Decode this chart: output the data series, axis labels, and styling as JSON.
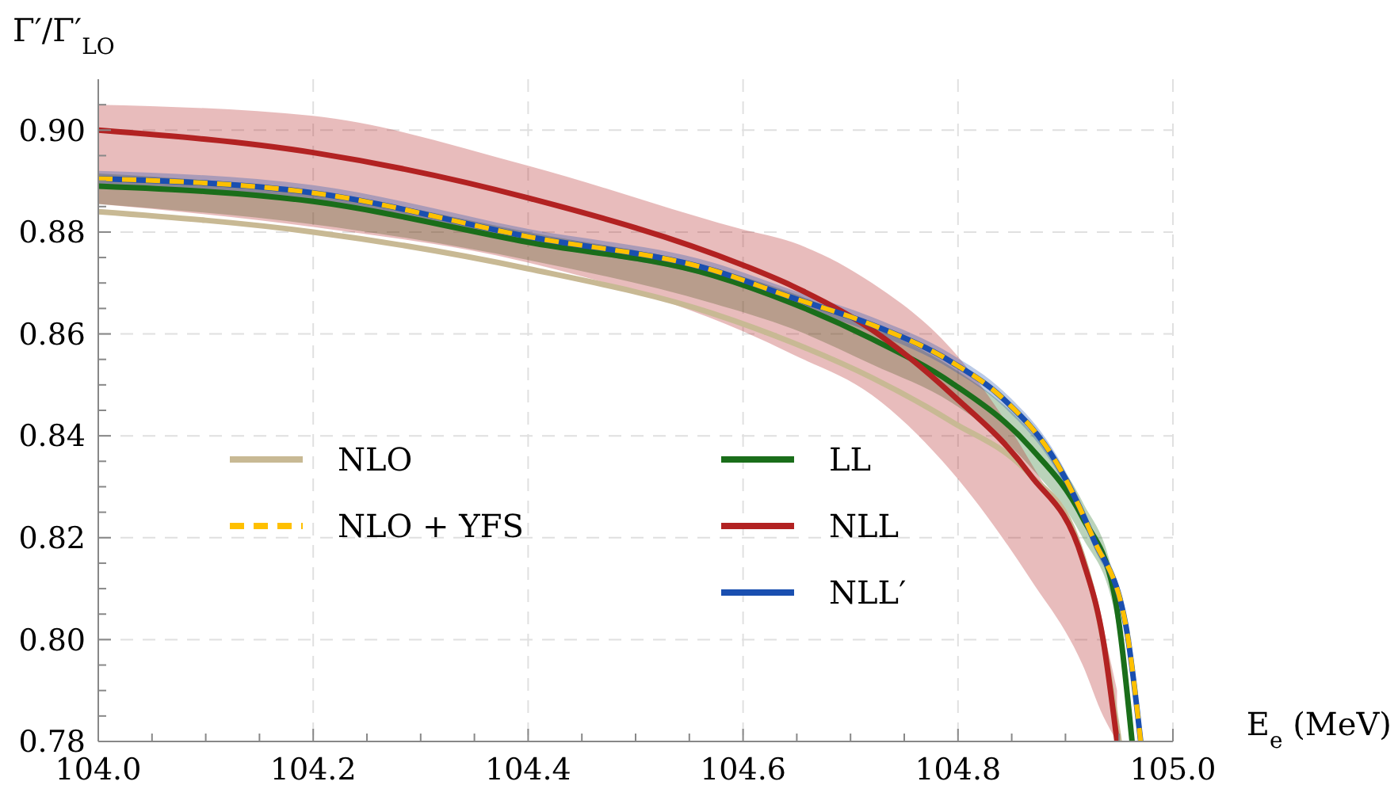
{
  "chart_data": {
    "type": "line",
    "xlabel": "E$_{e}$ (MeV)",
    "ylabel": "Γ′/Γ′$_{LO}$",
    "xlim": [
      104.0,
      105.0
    ],
    "ylim": [
      0.78,
      0.91
    ],
    "xticks": [
      {
        "value": 104.0,
        "label": "104.0"
      },
      {
        "value": 104.05,
        "label": null
      },
      {
        "value": 104.1,
        "label": null
      },
      {
        "value": 104.15,
        "label": null
      },
      {
        "value": 104.2,
        "label": "104.2"
      },
      {
        "value": 104.25,
        "label": null
      },
      {
        "value": 104.3,
        "label": null
      },
      {
        "value": 104.35,
        "label": null
      },
      {
        "value": 104.4,
        "label": "104.4"
      },
      {
        "value": 104.45,
        "label": null
      },
      {
        "value": 104.5,
        "label": null
      },
      {
        "value": 104.55,
        "label": null
      },
      {
        "value": 104.6,
        "label": "104.6"
      },
      {
        "value": 104.65,
        "label": null
      },
      {
        "value": 104.7,
        "label": null
      },
      {
        "value": 104.75,
        "label": null
      },
      {
        "value": 104.8,
        "label": "104.8"
      },
      {
        "value": 104.85,
        "label": null
      },
      {
        "value": 104.9,
        "label": null
      },
      {
        "value": 104.95,
        "label": null
      },
      {
        "value": 105.0,
        "label": "105.0"
      }
    ],
    "yticks": [
      {
        "value": 0.78,
        "label": "0.78"
      },
      {
        "value": 0.785,
        "label": null
      },
      {
        "value": 0.79,
        "label": null
      },
      {
        "value": 0.795,
        "label": null
      },
      {
        "value": 0.8,
        "label": "0.80"
      },
      {
        "value": 0.805,
        "label": null
      },
      {
        "value": 0.81,
        "label": null
      },
      {
        "value": 0.815,
        "label": null
      },
      {
        "value": 0.82,
        "label": "0.82"
      },
      {
        "value": 0.825,
        "label": null
      },
      {
        "value": 0.83,
        "label": null
      },
      {
        "value": 0.835,
        "label": null
      },
      {
        "value": 0.84,
        "label": "0.84"
      },
      {
        "value": 0.845,
        "label": null
      },
      {
        "value": 0.85,
        "label": null
      },
      {
        "value": 0.855,
        "label": null
      },
      {
        "value": 0.86,
        "label": "0.86"
      },
      {
        "value": 0.865,
        "label": null
      },
      {
        "value": 0.87,
        "label": null
      },
      {
        "value": 0.875,
        "label": null
      },
      {
        "value": 0.88,
        "label": "0.88"
      },
      {
        "value": 0.885,
        "label": null
      },
      {
        "value": 0.89,
        "label": null
      },
      {
        "value": 0.895,
        "label": null
      },
      {
        "value": 0.9,
        "label": "0.90"
      },
      {
        "value": 0.905,
        "label": null
      }
    ],
    "grid": true,
    "legend": "left",
    "series": [
      {
        "name": "NLO",
        "color": "#c8b994",
        "line_style": "solid",
        "x": [
          104.0,
          104.2,
          104.4,
          104.572,
          104.646,
          104.72,
          104.794,
          104.867,
          104.91,
          104.935,
          104.95
        ],
        "values": [
          0.884,
          0.88,
          0.8728,
          0.864,
          0.8583,
          0.8514,
          0.8428,
          0.8324,
          0.82,
          0.8,
          0.78
        ]
      },
      {
        "name": "NLO + YFS",
        "color": "#ffc000",
        "line_style": "dashed",
        "x": [
          104.0,
          104.2,
          104.4,
          104.572,
          104.646,
          104.72,
          104.794,
          104.842,
          104.892,
          104.926,
          104.956,
          104.97
        ],
        "values": [
          0.8905,
          0.8877,
          0.8791,
          0.8725,
          0.8671,
          0.8618,
          0.8545,
          0.8473,
          0.8346,
          0.8198,
          0.803,
          0.78
        ]
      },
      {
        "name": "LL",
        "color": "#1a6e1a",
        "line_style": "solid",
        "x": [
          104.0,
          104.2,
          104.4,
          104.572,
          104.646,
          104.72,
          104.794,
          104.867,
          104.916,
          104.945,
          104.962
        ],
        "values": [
          0.889,
          0.886,
          0.878,
          0.8715,
          0.866,
          0.859,
          0.8504,
          0.8378,
          0.8239,
          0.8094,
          0.78
        ],
        "upper": [
          0.8915,
          0.888,
          0.88,
          0.873,
          0.868,
          0.8615,
          0.8535,
          0.841,
          0.827,
          0.812,
          0.78
        ],
        "lower": [
          0.8855,
          0.8815,
          0.8745,
          0.866,
          0.861,
          0.854,
          0.8465,
          0.834,
          0.82,
          0.806,
          0.78
        ]
      },
      {
        "name": "NLL",
        "color": "#b22222",
        "line_style": "solid",
        "x": [
          104.0,
          104.2,
          104.4,
          104.6,
          104.646,
          104.72,
          104.794,
          104.867,
          104.916,
          104.935,
          104.948
        ],
        "values": [
          0.9,
          0.8956,
          0.8867,
          0.8735,
          0.8694,
          0.8608,
          0.8482,
          0.8324,
          0.8157,
          0.8,
          0.78
        ],
        "upper": [
          0.905,
          0.9028,
          0.893,
          0.8805,
          0.878,
          0.87,
          0.857,
          0.835,
          0.815,
          0.802,
          0.79
        ],
        "lower": [
          0.8855,
          0.881,
          0.874,
          0.8605,
          0.856,
          0.848,
          0.833,
          0.812,
          0.795,
          0.785,
          0.78
        ]
      },
      {
        "name": "NLL′",
        "color": "#1a4fb0",
        "line_style": "solid",
        "x": [
          104.0,
          104.2,
          104.4,
          104.572,
          104.646,
          104.72,
          104.794,
          104.842,
          104.892,
          104.926,
          104.956,
          104.97
        ],
        "values": [
          0.8905,
          0.8877,
          0.8791,
          0.8725,
          0.8671,
          0.8618,
          0.8545,
          0.8473,
          0.8346,
          0.8198,
          0.803,
          0.78
        ],
        "upper": [
          0.892,
          0.8892,
          0.8806,
          0.874,
          0.8686,
          0.8633,
          0.856,
          0.8488,
          0.8361,
          0.8213,
          0.8045,
          0.78
        ],
        "lower": [
          0.889,
          0.8862,
          0.8776,
          0.871,
          0.8656,
          0.8603,
          0.853,
          0.8458,
          0.8331,
          0.8183,
          0.8015,
          0.78
        ]
      }
    ]
  }
}
